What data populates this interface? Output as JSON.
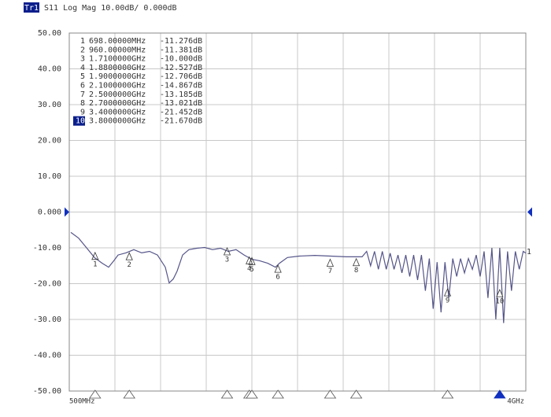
{
  "chart_data": {
    "type": "line",
    "trace_label": "Tr1",
    "title": "S11 Log Mag 10.00dB/ 0.000dB",
    "trace_end_label": "1",
    "reference": 0,
    "xlim": [
      500,
      4000
    ],
    "xticks": [
      {
        "value": 500,
        "label": "500MHz"
      },
      {
        "value": 4000,
        "label": "4GHz"
      }
    ],
    "ylim": [
      -50,
      50
    ],
    "yticks": [
      {
        "value": 50,
        "label": "50.00"
      },
      {
        "value": 40,
        "label": "40.00"
      },
      {
        "value": 30,
        "label": "30.00"
      },
      {
        "value": 20,
        "label": "20.00"
      },
      {
        "value": 10,
        "label": "10.00"
      },
      {
        "value": 0,
        "label": "0.000"
      },
      {
        "value": -10,
        "label": "-10.00"
      },
      {
        "value": -20,
        "label": "-20.00"
      },
      {
        "value": -30,
        "label": "-30.00"
      },
      {
        "value": -40,
        "label": "-40.00"
      },
      {
        "value": -50,
        "label": "-50.00"
      }
    ],
    "grid": true,
    "x": [
      512,
      572,
      633,
      693,
      753,
      802,
      844,
      874,
      934,
      995,
      1055,
      1115,
      1176,
      1236,
      1266,
      1297,
      1327,
      1369,
      1417,
      1478,
      1538,
      1598,
      1659,
      1719,
      1779,
      1840,
      1900,
      1960,
      2021,
      2081,
      2111,
      2172,
      2262,
      2383,
      2503,
      2624,
      2745,
      2780,
      2810,
      2840,
      2870,
      2900,
      2930,
      2960,
      2990,
      3020,
      3050,
      3080,
      3110,
      3140,
      3170,
      3200,
      3230,
      3260,
      3290,
      3320,
      3350,
      3380,
      3410,
      3440,
      3470,
      3500,
      3530,
      3560,
      3590,
      3620,
      3650,
      3680,
      3710,
      3740,
      3770,
      3800,
      3830,
      3860,
      3890,
      3920,
      3950,
      3980,
      4000
    ],
    "series": [
      {
        "color": "#55558a",
        "values": [
          -5.7,
          -7.3,
          -10,
          -12.7,
          -14.3,
          -15.4,
          -13.5,
          -12,
          -11.4,
          -10.5,
          -11.4,
          -11,
          -12,
          -15.4,
          -19.8,
          -18.7,
          -16.5,
          -12,
          -10.5,
          -10.1,
          -9.9,
          -10.5,
          -10.1,
          -11,
          -10.5,
          -12,
          -13.2,
          -13.6,
          -14.3,
          -15.4,
          -14.3,
          -12.7,
          -12.3,
          -12.1,
          -12.3,
          -12.5,
          -12.5,
          -11,
          -15,
          -11,
          -16,
          -11,
          -16,
          -11.5,
          -16,
          -12,
          -17,
          -12,
          -18,
          -12,
          -19,
          -12,
          -22,
          -13,
          -27,
          -14,
          -28,
          -14,
          -24,
          -13,
          -18,
          -13,
          -17,
          -13,
          -16,
          -12,
          -18,
          -11,
          -24,
          -10,
          -30,
          -10,
          -31,
          -11,
          -22,
          -11,
          -16,
          -11,
          -11.5
        ]
      }
    ],
    "markers": {
      "names": [
        "1",
        "2",
        "3",
        "4",
        "5",
        "6",
        "7",
        "8",
        "9",
        "10"
      ],
      "x": [
        698,
        960,
        1710,
        1880,
        1900,
        2100,
        2500,
        2700,
        3400,
        3800
      ],
      "values": [
        -11.276,
        -11.381,
        -10.0,
        -12.527,
        -12.706,
        -14.867,
        -13.185,
        -13.021,
        -21.452,
        -21.67
      ],
      "x_labels": [
        "698.00000MHz",
        "960.00000MHz",
        "1.7100000GHz",
        "1.8800000GHz",
        "1.9000000GHz",
        "2.1000000GHz",
        "2.5000000GHz",
        "2.7000000GHz",
        "3.4000000GHz",
        "3.8000000GHz"
      ],
      "value_labels": [
        "-11.276dB",
        "-11.381dB",
        "-10.000dB",
        "-12.527dB",
        "-12.706dB",
        "-14.867dB",
        "-13.185dB",
        "-13.021dB",
        "-21.452dB",
        "-21.670dB"
      ]
    }
  }
}
